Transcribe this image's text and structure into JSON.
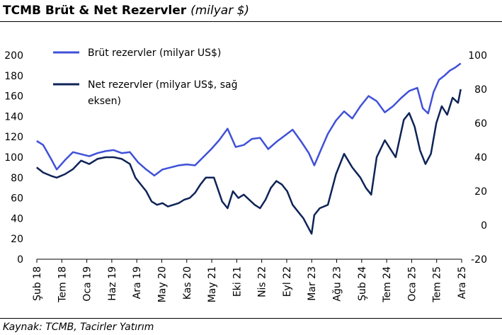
{
  "header": {
    "title": "TCMB Brüt & Net Rezervler",
    "unit": "(milyar $)"
  },
  "footer": {
    "source": "Kaynak: TCMB, Tacirler Yatırım"
  },
  "chart_data": {
    "type": "line",
    "x_ticks": [
      "Şub 18",
      "Tem 18",
      "Oca 19",
      "Haz 19",
      "Ara 19",
      "May 20",
      "Kas 20",
      "May 21",
      "Eki 21",
      "Nis 22",
      "Eyl 22",
      "Mar 23",
      "Ağu 23",
      "Şub 24",
      "Tem 24",
      "Oca 25",
      "Tem 25",
      "Ara 25"
    ],
    "y_left_ticks": [
      0,
      20,
      40,
      60,
      80,
      100,
      120,
      140,
      160,
      180,
      200
    ],
    "y_right_ticks": [
      -20,
      0,
      20,
      40,
      60,
      80,
      100
    ],
    "ylim_left": [
      0,
      200
    ],
    "ylim_right": [
      -20,
      100
    ],
    "legend": [
      "Brüt rezervler (milyar US$)",
      "Net rezervler (milyar US$, sağ",
      "eksen)"
    ],
    "series": [
      {
        "name": "Brüt rezervler (milyar US$)",
        "axis": "left",
        "color": "#3F51D8",
        "x": [
          2018.08,
          2018.2,
          2018.35,
          2018.45,
          2018.6,
          2018.75,
          2018.9,
          2019.05,
          2019.2,
          2019.35,
          2019.5,
          2019.65,
          2019.8,
          2019.95,
          2020.1,
          2020.25,
          2020.4,
          2020.55,
          2020.7,
          2020.85,
          2021.0,
          2021.15,
          2021.3,
          2021.45,
          2021.6,
          2021.75,
          2021.9,
          2022.05,
          2022.2,
          2022.35,
          2022.5,
          2022.65,
          2022.8,
          2022.95,
          2023.1,
          2023.2,
          2023.32,
          2023.45,
          2023.6,
          2023.75,
          2023.9,
          2024.05,
          2024.2,
          2024.35,
          2024.5,
          2024.65,
          2024.8,
          2024.95,
          2025.1,
          2025.2,
          2025.3,
          2025.4,
          2025.5,
          2025.6,
          2025.7,
          2025.8,
          2025.9
        ],
        "y": [
          116,
          112,
          98,
          88,
          97,
          105,
          103,
          101,
          104,
          106,
          107,
          104,
          105,
          95,
          88,
          82,
          88,
          90,
          92,
          93,
          92,
          100,
          108,
          117,
          128,
          110,
          112,
          118,
          119,
          108,
          115,
          121,
          127,
          116,
          104,
          92,
          107,
          123,
          136,
          145,
          138,
          150,
          160,
          155,
          144,
          150,
          158,
          165,
          168,
          148,
          143,
          164,
          176,
          180,
          185,
          188,
          192
        ]
      },
      {
        "name": "Net rezervler (milyar US$, sağ eksen)",
        "axis": "right",
        "color": "#0E2357",
        "x": [
          2018.08,
          2018.2,
          2018.35,
          2018.45,
          2018.6,
          2018.75,
          2018.9,
          2019.05,
          2019.2,
          2019.35,
          2019.5,
          2019.65,
          2019.8,
          2019.9,
          2020.0,
          2020.1,
          2020.2,
          2020.3,
          2020.4,
          2020.5,
          2020.6,
          2020.7,
          2020.8,
          2020.9,
          2021.0,
          2021.1,
          2021.2,
          2021.35,
          2021.5,
          2021.6,
          2021.7,
          2021.8,
          2021.9,
          2022.0,
          2022.1,
          2022.2,
          2022.3,
          2022.4,
          2022.5,
          2022.6,
          2022.7,
          2022.8,
          2022.9,
          2023.0,
          2023.1,
          2023.15,
          2023.2,
          2023.3,
          2023.45,
          2023.6,
          2023.75,
          2023.9,
          2024.05,
          2024.15,
          2024.25,
          2024.35,
          2024.5,
          2024.6,
          2024.7,
          2024.85,
          2024.95,
          2025.05,
          2025.15,
          2025.25,
          2025.35,
          2025.45,
          2025.55,
          2025.65,
          2025.75,
          2025.85,
          2025.9
        ],
        "y": [
          34,
          31,
          29,
          28,
          30,
          33,
          38,
          36,
          39,
          40,
          40,
          39,
          36,
          28,
          24,
          20,
          14,
          12,
          13,
          11,
          12,
          13,
          15,
          16,
          19,
          24,
          28,
          28,
          14,
          10,
          20,
          16,
          18,
          15,
          12,
          10,
          15,
          22,
          26,
          24,
          20,
          12,
          8,
          4,
          -2,
          -5,
          6,
          10,
          12,
          30,
          42,
          34,
          28,
          22,
          18,
          40,
          50,
          45,
          40,
          62,
          66,
          58,
          44,
          36,
          42,
          60,
          70,
          65,
          75,
          72,
          80
        ]
      }
    ]
  }
}
